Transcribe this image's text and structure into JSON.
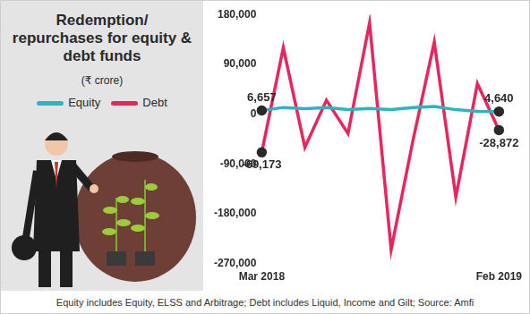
{
  "chart_data": {
    "type": "line",
    "title": "Redemption/ repurchases for equity & debt funds",
    "subtitle": "(₹ crore)",
    "footnote": "Equity includes Equity, ELSS and Arbitrage; Debt includes Liquid, Income and Gilt; Source: Amfi",
    "categories": [
      "Mar 2018",
      null,
      null,
      null,
      null,
      null,
      null,
      null,
      null,
      null,
      null,
      "Feb 2019"
    ],
    "series": [
      {
        "name": "Equity",
        "color": "#2bb5c0",
        "values": [
          6657,
          12000,
          10000,
          12000,
          8000,
          10000,
          8000,
          12000,
          14000,
          8000,
          5000,
          4640
        ],
        "value_labels": [
          "6,657",
          null,
          null,
          null,
          null,
          null,
          null,
          null,
          null,
          null,
          null,
          "4,640"
        ]
      },
      {
        "name": "Debt",
        "color": "#e8265e",
        "values": [
          -69173,
          120000,
          -60000,
          25000,
          -35000,
          165000,
          -245000,
          -50000,
          130000,
          -150000,
          55000,
          -28872
        ],
        "value_labels": [
          "-69,173",
          null,
          null,
          null,
          null,
          null,
          null,
          null,
          null,
          null,
          null,
          "-28,872"
        ]
      }
    ],
    "ylim": [
      -270000,
      180000
    ],
    "yticks": [
      {
        "value": 180000,
        "label": "180,000"
      },
      {
        "value": 90000,
        "label": "90,000"
      },
      0,
      {
        "value": -90000,
        "label": "-90,000"
      },
      {
        "value": -180000,
        "label": "-180,000"
      },
      {
        "value": -270000,
        "label": "-270,000"
      }
    ],
    "grid": false,
    "data_labels": true
  }
}
